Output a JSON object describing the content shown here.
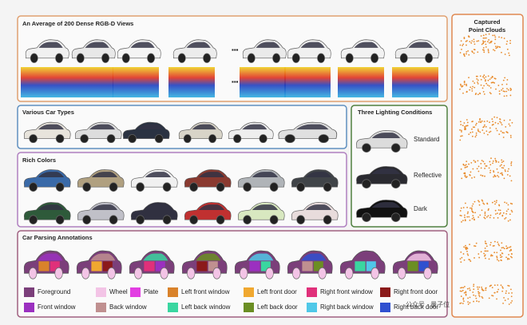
{
  "views": {
    "title": "An Average of 200 Dense RGB-D Views"
  },
  "point_clouds": {
    "title_line1": "Captured",
    "title_line2": "Point Clouds"
  },
  "car_types": {
    "title": "Various Car Types"
  },
  "lighting": {
    "title": "Three Lighting Conditions",
    "conditions": [
      "Standard",
      "Reflective",
      "Dark"
    ]
  },
  "colors": {
    "title": "Rich Colors"
  },
  "parsing": {
    "title": "Car Parsing Annotations",
    "legend": [
      {
        "label": "Foreground",
        "color": "#7b3f7a"
      },
      {
        "label": "Wheel",
        "color": "#f3c4e6"
      },
      {
        "label": "Plate",
        "color": "#e23ee2"
      },
      {
        "label": "Left front window",
        "color": "#d9822b"
      },
      {
        "label": "Left front door",
        "color": "#f0a830"
      },
      {
        "label": "Right front window",
        "color": "#e0307a"
      },
      {
        "label": "Right front door",
        "color": "#8b1a1a"
      },
      {
        "label": "Front window",
        "color": "#9b30c0"
      },
      {
        "label": "Back window",
        "color": "#c09090"
      },
      {
        "label": "Left back window",
        "color": "#3ad6a0"
      },
      {
        "label": "Left back door",
        "color": "#6b8e23"
      },
      {
        "label": "Right back window",
        "color": "#50c8e8"
      },
      {
        "label": "Right back door",
        "color": "#3050d0"
      }
    ]
  },
  "watermark": "公众号 · 量子位"
}
